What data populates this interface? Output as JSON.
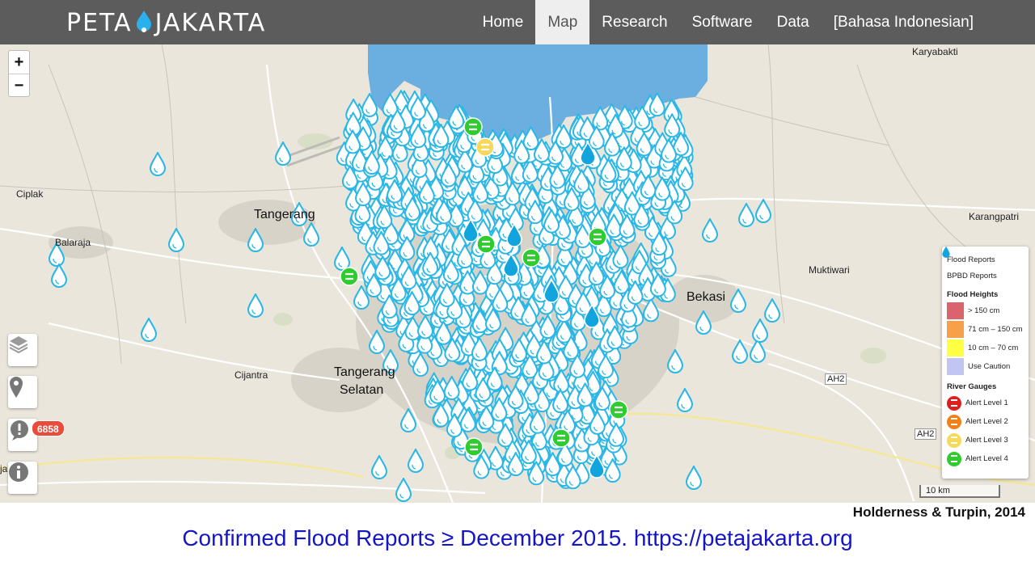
{
  "header": {
    "brand_left": "PETA",
    "brand_right": "JAKARTA",
    "nav": [
      {
        "label": "Home",
        "active": false
      },
      {
        "label": "Map",
        "active": true
      },
      {
        "label": "Research",
        "active": false
      },
      {
        "label": "Software",
        "active": false
      },
      {
        "label": "Data",
        "active": false
      },
      {
        "label": "[Bahasa Indonesian]",
        "active": false
      }
    ]
  },
  "map_controls": {
    "zoom_in": "+",
    "zoom_out": "−",
    "report_count": "6858"
  },
  "places": {
    "karyabakti": "Karyabakti",
    "ciplak": "Ciplak",
    "tangerang": "Tangerang",
    "balaraja": "Balaraja",
    "karangpatri": "Karangpatri",
    "muktiwari": "Muktiwari",
    "bekasi": "Bekasi",
    "cijantra": "Cijantra",
    "tangerang_selatan_1": "Tangerang",
    "tangerang_selatan_2": "Selatan",
    "road_ah2_a": "AH2",
    "road_ah2_b": "AH2",
    "edge_ja": "ja"
  },
  "legend": {
    "flood_reports": "Flood Reports",
    "bpbd_reports": "BPBD Reports",
    "flood_heights_title": "Flood Heights",
    "heights": [
      {
        "label": "> 150 cm",
        "color": "#d9646e"
      },
      {
        "label": "71 cm – 150 cm",
        "color": "#f7a04a"
      },
      {
        "label": "10 cm – 70 cm",
        "color": "#ffff44"
      },
      {
        "label": "Use Caution",
        "color": "#c2c5f2"
      }
    ],
    "river_gauges_title": "River Gauges",
    "gauges": [
      {
        "label": "Alert Level 1",
        "color": "#dd1f1f"
      },
      {
        "label": "Alert Level 2",
        "color": "#f57f17"
      },
      {
        "label": "Alert Level 3",
        "color": "#f6d85b"
      },
      {
        "label": "Alert Level 4",
        "color": "#2ecc2e"
      }
    ]
  },
  "scale_label": "10 km",
  "colors": {
    "flood_report": "#2ab7e6",
    "bpbd_report": "#11a4dd",
    "gauge_green": "#2ecc2e",
    "gauge_yellow": "#f6d85b",
    "sea": "#6aafdf",
    "land": "#ebe6dc",
    "nav_bg": "#5c5c5c",
    "caption": "#1515c8"
  },
  "citation": "Holderness & Turpin, 2014",
  "caption": "Confirmed Flood Reports ≥ December 2015. https://petajakarta.org"
}
